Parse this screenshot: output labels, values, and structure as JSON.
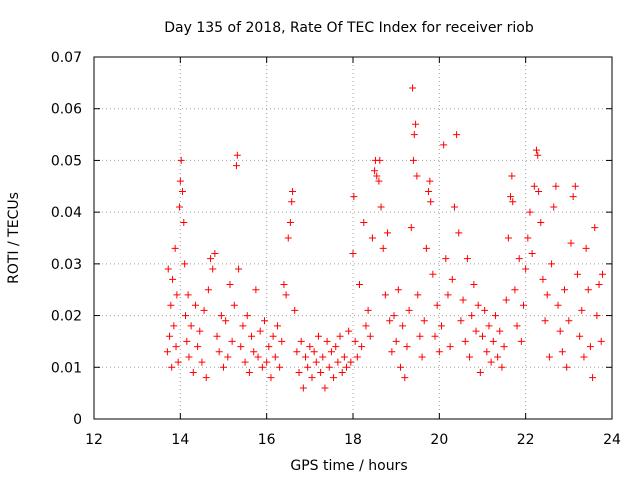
{
  "chart_data": {
    "type": "scatter",
    "title": "Day 135 of 2018, Rate Of TEC Index for receiver riob",
    "xlabel": "GPS time / hours",
    "ylabel": "ROTI / TECUs",
    "xlim": [
      12,
      24
    ],
    "ylim": [
      0,
      0.07
    ],
    "x_ticks": [
      12,
      14,
      16,
      18,
      20,
      22,
      24
    ],
    "y_ticks": [
      0,
      0.01,
      0.02,
      0.03,
      0.04,
      0.05,
      0.06,
      0.07
    ],
    "x_tick_labels": [
      "12",
      "14",
      "16",
      "18",
      "20",
      "22",
      "24"
    ],
    "y_tick_labels": [
      "0",
      "0.01",
      "0.02",
      "0.03",
      "0.04",
      "0.05",
      "0.06",
      "0.07"
    ],
    "grid": true,
    "marker": "+",
    "color": "#ff0000",
    "series": [
      {
        "name": "ROTI",
        "points": [
          [
            13.7,
            0.013
          ],
          [
            13.72,
            0.029
          ],
          [
            13.75,
            0.016
          ],
          [
            13.78,
            0.022
          ],
          [
            13.8,
            0.01
          ],
          [
            13.82,
            0.027
          ],
          [
            13.85,
            0.018
          ],
          [
            13.88,
            0.033
          ],
          [
            13.9,
            0.014
          ],
          [
            13.92,
            0.024
          ],
          [
            13.95,
            0.011
          ],
          [
            13.98,
            0.041
          ],
          [
            14.0,
            0.046
          ],
          [
            14.02,
            0.05
          ],
          [
            14.05,
            0.044
          ],
          [
            14.08,
            0.038
          ],
          [
            14.1,
            0.03
          ],
          [
            14.12,
            0.02
          ],
          [
            14.15,
            0.015
          ],
          [
            14.18,
            0.024
          ],
          [
            14.2,
            0.012
          ],
          [
            14.25,
            0.018
          ],
          [
            14.3,
            0.009
          ],
          [
            14.35,
            0.022
          ],
          [
            14.4,
            0.014
          ],
          [
            14.45,
            0.017
          ],
          [
            14.5,
            0.011
          ],
          [
            14.55,
            0.021
          ],
          [
            14.6,
            0.008
          ],
          [
            14.65,
            0.025
          ],
          [
            14.7,
            0.031
          ],
          [
            14.75,
            0.029
          ],
          [
            14.8,
            0.032
          ],
          [
            14.85,
            0.016
          ],
          [
            14.9,
            0.013
          ],
          [
            14.95,
            0.02
          ],
          [
            15.0,
            0.01
          ],
          [
            15.05,
            0.019
          ],
          [
            15.1,
            0.012
          ],
          [
            15.15,
            0.026
          ],
          [
            15.2,
            0.015
          ],
          [
            15.25,
            0.022
          ],
          [
            15.3,
            0.049
          ],
          [
            15.32,
            0.051
          ],
          [
            15.35,
            0.029
          ],
          [
            15.4,
            0.014
          ],
          [
            15.45,
            0.018
          ],
          [
            15.5,
            0.011
          ],
          [
            15.55,
            0.02
          ],
          [
            15.6,
            0.009
          ],
          [
            15.65,
            0.016
          ],
          [
            15.7,
            0.013
          ],
          [
            15.75,
            0.025
          ],
          [
            15.8,
            0.012
          ],
          [
            15.85,
            0.017
          ],
          [
            15.9,
            0.01
          ],
          [
            15.95,
            0.019
          ],
          [
            16.0,
            0.011
          ],
          [
            16.05,
            0.014
          ],
          [
            16.1,
            0.008
          ],
          [
            16.15,
            0.016
          ],
          [
            16.2,
            0.012
          ],
          [
            16.25,
            0.018
          ],
          [
            16.3,
            0.01
          ],
          [
            16.35,
            0.015
          ],
          [
            16.4,
            0.026
          ],
          [
            16.45,
            0.024
          ],
          [
            16.5,
            0.035
          ],
          [
            16.55,
            0.038
          ],
          [
            16.58,
            0.042
          ],
          [
            16.6,
            0.044
          ],
          [
            16.65,
            0.021
          ],
          [
            16.7,
            0.013
          ],
          [
            16.75,
            0.009
          ],
          [
            16.8,
            0.015
          ],
          [
            16.85,
            0.006
          ],
          [
            16.9,
            0.012
          ],
          [
            16.95,
            0.01
          ],
          [
            17.0,
            0.014
          ],
          [
            17.05,
            0.008
          ],
          [
            17.1,
            0.013
          ],
          [
            17.15,
            0.011
          ],
          [
            17.2,
            0.016
          ],
          [
            17.25,
            0.009
          ],
          [
            17.3,
            0.012
          ],
          [
            17.35,
            0.006
          ],
          [
            17.4,
            0.015
          ],
          [
            17.45,
            0.01
          ],
          [
            17.5,
            0.013
          ],
          [
            17.55,
            0.008
          ],
          [
            17.6,
            0.014
          ],
          [
            17.65,
            0.011
          ],
          [
            17.7,
            0.016
          ],
          [
            17.75,
            0.009
          ],
          [
            17.8,
            0.012
          ],
          [
            17.85,
            0.01
          ],
          [
            17.9,
            0.017
          ],
          [
            17.95,
            0.011
          ],
          [
            18.0,
            0.032
          ],
          [
            18.02,
            0.043
          ],
          [
            18.05,
            0.015
          ],
          [
            18.1,
            0.012
          ],
          [
            18.15,
            0.026
          ],
          [
            18.2,
            0.014
          ],
          [
            18.25,
            0.038
          ],
          [
            18.3,
            0.018
          ],
          [
            18.35,
            0.021
          ],
          [
            18.4,
            0.016
          ],
          [
            18.45,
            0.035
          ],
          [
            18.5,
            0.048
          ],
          [
            18.52,
            0.05
          ],
          [
            18.55,
            0.047
          ],
          [
            18.6,
            0.046
          ],
          [
            18.62,
            0.05
          ],
          [
            18.65,
            0.041
          ],
          [
            18.7,
            0.033
          ],
          [
            18.75,
            0.024
          ],
          [
            18.8,
            0.036
          ],
          [
            18.85,
            0.019
          ],
          [
            18.9,
            0.013
          ],
          [
            18.95,
            0.02
          ],
          [
            19.0,
            0.015
          ],
          [
            19.05,
            0.025
          ],
          [
            19.1,
            0.01
          ],
          [
            19.15,
            0.018
          ],
          [
            19.2,
            0.008
          ],
          [
            19.25,
            0.014
          ],
          [
            19.3,
            0.021
          ],
          [
            19.35,
            0.037
          ],
          [
            19.38,
            0.064
          ],
          [
            19.4,
            0.05
          ],
          [
            19.42,
            0.055
          ],
          [
            19.45,
            0.057
          ],
          [
            19.48,
            0.047
          ],
          [
            19.5,
            0.024
          ],
          [
            19.55,
            0.016
          ],
          [
            19.6,
            0.012
          ],
          [
            19.65,
            0.019
          ],
          [
            19.7,
            0.033
          ],
          [
            19.75,
            0.044
          ],
          [
            19.78,
            0.046
          ],
          [
            19.8,
            0.042
          ],
          [
            19.85,
            0.028
          ],
          [
            19.9,
            0.016
          ],
          [
            19.95,
            0.022
          ],
          [
            20.0,
            0.013
          ],
          [
            20.05,
            0.018
          ],
          [
            20.1,
            0.053
          ],
          [
            20.15,
            0.031
          ],
          [
            20.2,
            0.024
          ],
          [
            20.25,
            0.014
          ],
          [
            20.3,
            0.027
          ],
          [
            20.35,
            0.041
          ],
          [
            20.4,
            0.055
          ],
          [
            20.45,
            0.036
          ],
          [
            20.5,
            0.019
          ],
          [
            20.55,
            0.023
          ],
          [
            20.6,
            0.015
          ],
          [
            20.65,
            0.031
          ],
          [
            20.7,
            0.012
          ],
          [
            20.75,
            0.02
          ],
          [
            20.8,
            0.026
          ],
          [
            20.85,
            0.017
          ],
          [
            20.9,
            0.022
          ],
          [
            20.95,
            0.009
          ],
          [
            21.0,
            0.016
          ],
          [
            21.05,
            0.021
          ],
          [
            21.1,
            0.013
          ],
          [
            21.15,
            0.018
          ],
          [
            21.2,
            0.011
          ],
          [
            21.25,
            0.015
          ],
          [
            21.3,
            0.02
          ],
          [
            21.35,
            0.012
          ],
          [
            21.4,
            0.017
          ],
          [
            21.45,
            0.01
          ],
          [
            21.5,
            0.014
          ],
          [
            21.55,
            0.023
          ],
          [
            21.6,
            0.035
          ],
          [
            21.65,
            0.043
          ],
          [
            21.68,
            0.047
          ],
          [
            21.7,
            0.042
          ],
          [
            21.75,
            0.025
          ],
          [
            21.8,
            0.018
          ],
          [
            21.85,
            0.031
          ],
          [
            21.9,
            0.015
          ],
          [
            21.95,
            0.022
          ],
          [
            22.0,
            0.029
          ],
          [
            22.05,
            0.035
          ],
          [
            22.1,
            0.04
          ],
          [
            22.15,
            0.032
          ],
          [
            22.2,
            0.045
          ],
          [
            22.25,
            0.052
          ],
          [
            22.28,
            0.051
          ],
          [
            22.3,
            0.044
          ],
          [
            22.35,
            0.038
          ],
          [
            22.4,
            0.027
          ],
          [
            22.45,
            0.019
          ],
          [
            22.5,
            0.024
          ],
          [
            22.55,
            0.012
          ],
          [
            22.6,
            0.03
          ],
          [
            22.65,
            0.041
          ],
          [
            22.7,
            0.045
          ],
          [
            22.75,
            0.022
          ],
          [
            22.8,
            0.017
          ],
          [
            22.85,
            0.013
          ],
          [
            22.9,
            0.025
          ],
          [
            22.95,
            0.01
          ],
          [
            23.0,
            0.019
          ],
          [
            23.05,
            0.034
          ],
          [
            23.1,
            0.043
          ],
          [
            23.15,
            0.045
          ],
          [
            23.2,
            0.028
          ],
          [
            23.25,
            0.016
          ],
          [
            23.3,
            0.021
          ],
          [
            23.35,
            0.012
          ],
          [
            23.4,
            0.033
          ],
          [
            23.45,
            0.025
          ],
          [
            23.5,
            0.014
          ],
          [
            23.55,
            0.008
          ],
          [
            23.6,
            0.037
          ],
          [
            23.65,
            0.02
          ],
          [
            23.7,
            0.026
          ],
          [
            23.75,
            0.015
          ],
          [
            23.78,
            0.028
          ]
        ]
      }
    ]
  }
}
